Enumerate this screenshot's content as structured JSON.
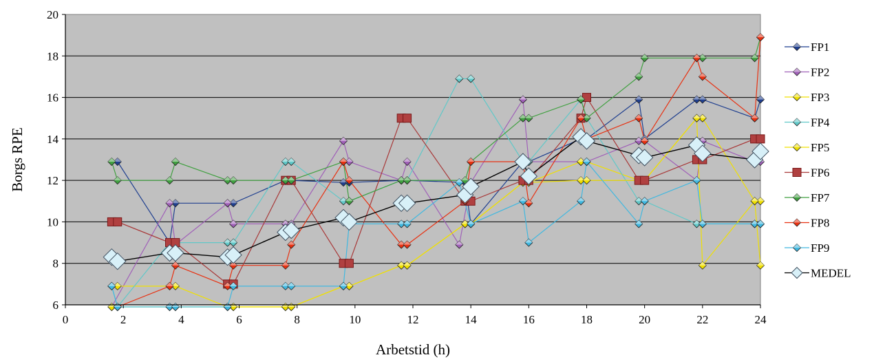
{
  "chart_data": {
    "type": "line",
    "title": "",
    "xlabel": "Arbetstid (h)",
    "ylabel": "Borgs RPE",
    "xlim": [
      0,
      24
    ],
    "ylim": [
      6,
      20
    ],
    "x_ticks": [
      "0",
      "2",
      "4",
      "6",
      "8",
      "10",
      "12",
      "14",
      "16",
      "18",
      "20",
      "22",
      "24"
    ],
    "y_ticks": [
      "6",
      "8",
      "10",
      "12",
      "14",
      "16",
      "18",
      "20"
    ],
    "grid": "horizontal",
    "legend_position": "right",
    "plot_background": "#c0c0c0",
    "series": [
      {
        "name": "FP1",
        "color": "#1f3f8f",
        "marker": "diamond",
        "points": [
          [
            1.8,
            12.9
          ],
          [
            3.6,
            9.0
          ],
          [
            3.8,
            10.9
          ],
          [
            5.6,
            10.9
          ],
          [
            5.8,
            10.9
          ],
          [
            7.6,
            12.0
          ],
          [
            7.8,
            12.0
          ],
          [
            9.6,
            11.9
          ],
          [
            9.8,
            11.9
          ],
          [
            11.6,
            12.0
          ],
          [
            11.8,
            12.0
          ],
          [
            13.8,
            11.9
          ],
          [
            14.0,
            9.9
          ],
          [
            15.8,
            12.9
          ],
          [
            16.0,
            12.9
          ],
          [
            17.8,
            14.0
          ],
          [
            18.0,
            14.0
          ],
          [
            19.8,
            15.9
          ],
          [
            20.0,
            14.0
          ],
          [
            21.8,
            15.9
          ],
          [
            22.0,
            15.9
          ],
          [
            23.8,
            15.0
          ],
          [
            24.0,
            15.9
          ]
        ]
      },
      {
        "name": "FP2",
        "color": "#a060b8",
        "marker": "diamond",
        "points": [
          [
            1.6,
            5.9
          ],
          [
            3.6,
            10.9
          ],
          [
            3.8,
            8.9
          ],
          [
            5.6,
            10.9
          ],
          [
            5.8,
            9.9
          ],
          [
            7.6,
            9.9
          ],
          [
            7.8,
            9.9
          ],
          [
            9.6,
            13.9
          ],
          [
            9.8,
            12.9
          ],
          [
            11.6,
            12.0
          ],
          [
            11.8,
            12.9
          ],
          [
            13.6,
            8.9
          ],
          [
            14.0,
            11.9
          ],
          [
            15.8,
            15.9
          ],
          [
            16.0,
            12.9
          ],
          [
            17.8,
            12.9
          ],
          [
            18.0,
            12.9
          ],
          [
            19.8,
            13.9
          ],
          [
            20.0,
            13.9
          ],
          [
            21.8,
            12.0
          ],
          [
            22.0,
            13.9
          ],
          [
            23.8,
            12.9
          ],
          [
            24.0,
            12.9
          ]
        ]
      },
      {
        "name": "FP3",
        "color": "#f0e000",
        "marker": "diamond",
        "points": [
          [
            1.6,
            6.9
          ],
          [
            1.8,
            6.9
          ],
          [
            3.6,
            6.9
          ],
          [
            3.8,
            6.9
          ],
          [
            5.6,
            5.9
          ],
          [
            5.8,
            5.9
          ],
          [
            7.6,
            5.9
          ],
          [
            7.8,
            5.9
          ],
          [
            9.6,
            6.9
          ],
          [
            9.8,
            6.9
          ],
          [
            11.6,
            7.9
          ],
          [
            11.8,
            7.9
          ],
          [
            13.8,
            9.9
          ],
          [
            14.0,
            9.9
          ],
          [
            15.8,
            11.9
          ],
          [
            16.0,
            11.9
          ],
          [
            17.8,
            12.9
          ],
          [
            18.0,
            12.9
          ],
          [
            19.8,
            12.0
          ],
          [
            20.0,
            12.0
          ],
          [
            21.8,
            15.0
          ],
          [
            22.0,
            15.0
          ],
          [
            23.8,
            11.0
          ],
          [
            24.0,
            11.0
          ]
        ]
      },
      {
        "name": "FP4",
        "color": "#60c8c8",
        "marker": "diamond",
        "points": [
          [
            1.6,
            6.9
          ],
          [
            1.8,
            5.9
          ],
          [
            3.6,
            9.0
          ],
          [
            3.8,
            9.0
          ],
          [
            5.6,
            9.0
          ],
          [
            5.8,
            9.0
          ],
          [
            7.6,
            12.9
          ],
          [
            7.8,
            12.9
          ],
          [
            9.6,
            11.0
          ],
          [
            9.8,
            11.0
          ],
          [
            11.6,
            12.0
          ],
          [
            11.8,
            12.0
          ],
          [
            13.6,
            16.9
          ],
          [
            14.0,
            16.9
          ],
          [
            15.8,
            12.9
          ],
          [
            16.0,
            12.9
          ],
          [
            17.8,
            15.9
          ],
          [
            18.0,
            15.0
          ],
          [
            19.8,
            11.0
          ],
          [
            20.0,
            11.0
          ],
          [
            21.8,
            9.9
          ],
          [
            22.0,
            9.9
          ],
          [
            23.8,
            9.9
          ],
          [
            24.0,
            9.9
          ]
        ]
      },
      {
        "name": "FP5",
        "color": "#f0e000",
        "marker": "diamond",
        "points": [
          [
            1.6,
            5.9
          ],
          [
            1.8,
            5.9
          ],
          [
            3.6,
            5.9
          ],
          [
            3.8,
            5.9
          ],
          [
            5.6,
            5.9
          ],
          [
            5.8,
            5.9
          ],
          [
            7.6,
            5.9
          ],
          [
            7.8,
            5.9
          ],
          [
            9.6,
            6.9
          ],
          [
            9.8,
            6.9
          ],
          [
            11.6,
            7.9
          ],
          [
            11.8,
            7.9
          ],
          [
            13.8,
            9.9
          ],
          [
            14.0,
            9.9
          ],
          [
            15.8,
            11.9
          ],
          [
            16.0,
            11.9
          ],
          [
            17.8,
            12.0
          ],
          [
            18.0,
            12.0
          ],
          [
            19.8,
            12.0
          ],
          [
            20.0,
            12.0
          ],
          [
            21.8,
            15.0
          ],
          [
            22.0,
            7.9
          ],
          [
            23.8,
            11.0
          ],
          [
            24.0,
            7.9
          ]
        ]
      },
      {
        "name": "FP6",
        "color": "#a83838",
        "marker": "square",
        "points": [
          [
            1.6,
            10.0
          ],
          [
            1.8,
            10.0
          ],
          [
            3.6,
            9.0
          ],
          [
            3.8,
            9.0
          ],
          [
            5.6,
            7.0
          ],
          [
            5.8,
            7.0
          ],
          [
            7.6,
            12.0
          ],
          [
            7.8,
            12.0
          ],
          [
            9.6,
            8.0
          ],
          [
            9.8,
            8.0
          ],
          [
            11.6,
            15.0
          ],
          [
            11.8,
            15.0
          ],
          [
            13.8,
            11.0
          ],
          [
            14.0,
            11.0
          ],
          [
            15.8,
            12.0
          ],
          [
            16.0,
            12.0
          ],
          [
            17.8,
            15.0
          ],
          [
            18.0,
            16.0
          ],
          [
            19.8,
            12.0
          ],
          [
            20.0,
            12.0
          ],
          [
            21.8,
            13.0
          ],
          [
            22.0,
            13.0
          ],
          [
            23.8,
            14.0
          ],
          [
            24.0,
            14.0
          ]
        ]
      },
      {
        "name": "FP7",
        "color": "#40a040",
        "marker": "diamond",
        "points": [
          [
            1.6,
            12.9
          ],
          [
            1.8,
            12.0
          ],
          [
            3.6,
            12.0
          ],
          [
            3.8,
            12.9
          ],
          [
            5.6,
            12.0
          ],
          [
            5.8,
            12.0
          ],
          [
            7.6,
            12.0
          ],
          [
            7.8,
            12.0
          ],
          [
            9.6,
            12.9
          ],
          [
            9.8,
            11.0
          ],
          [
            11.6,
            12.0
          ],
          [
            11.8,
            12.0
          ],
          [
            13.8,
            12.0
          ],
          [
            14.0,
            12.9
          ],
          [
            15.8,
            15.0
          ],
          [
            16.0,
            15.0
          ],
          [
            17.8,
            15.9
          ],
          [
            18.0,
            15.0
          ],
          [
            19.8,
            17.0
          ],
          [
            20.0,
            17.9
          ],
          [
            21.8,
            17.9
          ],
          [
            22.0,
            17.9
          ],
          [
            23.8,
            17.9
          ],
          [
            24.0,
            18.9
          ]
        ]
      },
      {
        "name": "FP8",
        "color": "#e83010",
        "marker": "diamond",
        "points": [
          [
            1.8,
            5.9
          ],
          [
            3.6,
            6.9
          ],
          [
            3.8,
            7.9
          ],
          [
            5.6,
            6.9
          ],
          [
            5.8,
            7.9
          ],
          [
            7.6,
            7.9
          ],
          [
            7.8,
            8.9
          ],
          [
            9.6,
            12.9
          ],
          [
            9.8,
            12.0
          ],
          [
            11.6,
            8.9
          ],
          [
            11.8,
            8.9
          ],
          [
            13.8,
            11.0
          ],
          [
            14.0,
            12.9
          ],
          [
            15.8,
            12.9
          ],
          [
            16.0,
            10.9
          ],
          [
            17.8,
            15.0
          ],
          [
            18.0,
            14.0
          ],
          [
            19.8,
            15.0
          ],
          [
            20.0,
            13.9
          ],
          [
            21.8,
            17.9
          ],
          [
            22.0,
            17.0
          ],
          [
            23.8,
            15.0
          ],
          [
            24.0,
            18.9
          ]
        ]
      },
      {
        "name": "FP9",
        "color": "#40b8e0",
        "marker": "diamond",
        "points": [
          [
            1.6,
            6.9
          ],
          [
            1.8,
            5.9
          ],
          [
            3.6,
            5.9
          ],
          [
            3.8,
            5.9
          ],
          [
            5.6,
            5.9
          ],
          [
            5.8,
            6.9
          ],
          [
            7.6,
            6.9
          ],
          [
            7.8,
            6.9
          ],
          [
            9.6,
            6.9
          ],
          [
            9.8,
            9.9
          ],
          [
            11.6,
            9.9
          ],
          [
            11.8,
            9.9
          ],
          [
            13.6,
            11.9
          ],
          [
            14.0,
            9.9
          ],
          [
            15.8,
            11.0
          ],
          [
            16.0,
            9.0
          ],
          [
            17.8,
            11.0
          ],
          [
            18.0,
            12.9
          ],
          [
            19.8,
            9.9
          ],
          [
            20.0,
            11.0
          ],
          [
            21.8,
            12.0
          ],
          [
            22.0,
            9.9
          ],
          [
            23.8,
            9.9
          ],
          [
            24.0,
            9.9
          ]
        ]
      },
      {
        "name": "MEDEL",
        "color": "#000000",
        "marker": "diamond-large",
        "points": [
          [
            1.6,
            8.3
          ],
          [
            1.8,
            8.1
          ],
          [
            3.6,
            8.5
          ],
          [
            3.8,
            8.5
          ],
          [
            5.6,
            8.3
          ],
          [
            5.8,
            8.4
          ],
          [
            7.6,
            9.5
          ],
          [
            7.8,
            9.6
          ],
          [
            9.6,
            10.2
          ],
          [
            9.8,
            10.0
          ],
          [
            11.6,
            10.9
          ],
          [
            11.8,
            10.9
          ],
          [
            13.8,
            11.3
          ],
          [
            14.0,
            11.7
          ],
          [
            15.8,
            12.9
          ],
          [
            16.0,
            12.2
          ],
          [
            17.8,
            14.1
          ],
          [
            18.0,
            13.9
          ],
          [
            19.8,
            13.2
          ],
          [
            20.0,
            13.1
          ],
          [
            21.8,
            13.7
          ],
          [
            22.0,
            13.3
          ],
          [
            23.8,
            13.0
          ],
          [
            24.0,
            13.4
          ]
        ]
      }
    ]
  }
}
